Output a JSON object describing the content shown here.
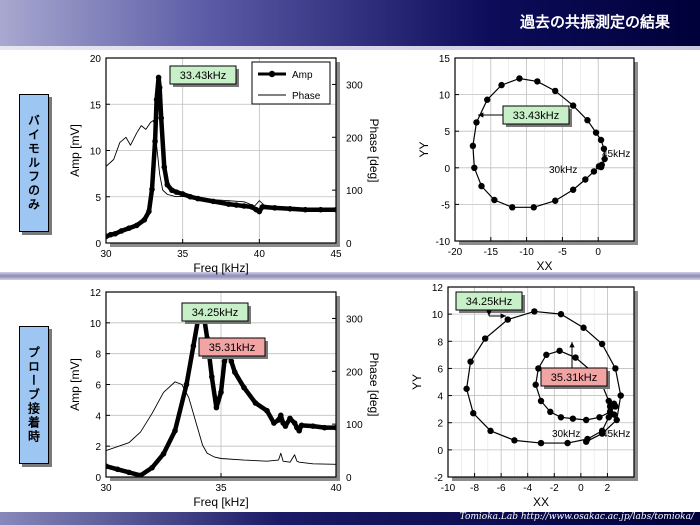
{
  "page": {
    "title": "過去の共振測定の結果",
    "footer": "Tomioka.Lab   http://www.osakac.ac.jp/labs/tomioka/",
    "section_labels": [
      "バイモルフのみ",
      "プローブ接着時"
    ]
  },
  "colors": {
    "grid": "#bfbfbf",
    "plot_bg": "#ffffff",
    "page_bg": "#ffffff",
    "frame": "#000000",
    "freq_box_green": "#c8f0c8",
    "freq_box_red": "#f2a4a4",
    "label_blue": "#9ec6f2"
  },
  "chart_data": [
    {
      "type": "line",
      "panel": "bimorph-freq",
      "xlabel": "Freq [kHz]",
      "ylabel": "Amp [mV]",
      "y2label": "Phase [deg]",
      "xlim": [
        30,
        45
      ],
      "ylim": [
        0,
        20
      ],
      "y2lim": [
        0,
        350
      ],
      "xticks": [
        30,
        35,
        40,
        45
      ],
      "yticks": [
        0,
        5,
        10,
        15,
        20
      ],
      "y2ticks": [
        0,
        100,
        200,
        300
      ],
      "grid": true,
      "legend": {
        "placement": "top-right",
        "entries": [
          "Amp",
          "Phase"
        ]
      },
      "annotations": [
        {
          "text": "33.43kHz"
        }
      ],
      "series": [
        {
          "name": "Amp",
          "axis": "left",
          "style": "thick-dots",
          "x": [
            30,
            30.3,
            30.6,
            31,
            31.5,
            32,
            32.5,
            32.8,
            33,
            33.2,
            33.3,
            33.43,
            33.5,
            33.6,
            33.8,
            34,
            34.3,
            34.6,
            35,
            35.5,
            36,
            37,
            38,
            38.5,
            39,
            39.5,
            39.8,
            40,
            40.2,
            41,
            42,
            43,
            44,
            45
          ],
          "y": [
            0.7,
            0.9,
            1.0,
            1.3,
            1.6,
            1.9,
            2.5,
            3.4,
            5.8,
            11,
            15.5,
            17.9,
            16.8,
            13.5,
            8.2,
            6.3,
            5.7,
            5.5,
            5.3,
            5.0,
            4.8,
            4.5,
            4.2,
            4.1,
            4.0,
            3.9,
            3.6,
            3.4,
            3.9,
            3.8,
            3.7,
            3.6,
            3.6,
            3.6
          ]
        },
        {
          "name": "Phase",
          "axis": "right",
          "style": "thin",
          "x": [
            30,
            30.5,
            30.9,
            31.3,
            31.6,
            32,
            32.3,
            32.6,
            32.9,
            33.1,
            33.3,
            33.5,
            33.7,
            34,
            34.5,
            35,
            36,
            37,
            38,
            39,
            39.7,
            40,
            40.3,
            41,
            42,
            43,
            45
          ],
          "y": [
            145,
            158,
            190,
            200,
            185,
            208,
            222,
            215,
            228,
            232,
            185,
            130,
            100,
            92,
            88,
            88,
            85,
            82,
            80,
            78,
            70,
            80,
            72,
            68,
            65,
            64,
            62
          ]
        }
      ]
    },
    {
      "type": "scatter",
      "panel": "bimorph-polar",
      "xlabel": "XX",
      "ylabel": "YY",
      "xlim": [
        -20,
        5
      ],
      "ylim": [
        -10,
        15
      ],
      "xticks": [
        -20,
        -15,
        -10,
        -5,
        0
      ],
      "yticks": [
        -10,
        -5,
        0,
        5,
        10,
        15
      ],
      "grid": true,
      "annotations": [
        {
          "text": "33.43kHz"
        },
        {
          "text": "30kHz"
        },
        {
          "text": "45kHz"
        }
      ],
      "series": [
        {
          "x": [
            0.4,
            0.9,
            0.8,
            0.4,
            -0.3,
            -1.5,
            -3.5,
            -6,
            -8.5,
            -11,
            -13.5,
            -15.5,
            -17,
            -17.5,
            -17.3,
            -16.3,
            -14.5,
            -12,
            -9,
            -6,
            -3.5,
            -1.8,
            -0.6,
            0.1,
            0.5
          ],
          "y": [
            0.1,
            1.2,
            2.6,
            3.8,
            4.8,
            6.5,
            8.5,
            10.5,
            11.8,
            12.2,
            11.3,
            9.3,
            6.2,
            3,
            0,
            -2.5,
            -4.4,
            -5.4,
            -5.4,
            -4.5,
            -3,
            -1.6,
            -0.5,
            0.2,
            0.4
          ]
        }
      ]
    },
    {
      "type": "line",
      "panel": "probe-freq",
      "xlabel": "Freq [kHz]",
      "ylabel": "Amp [mV]",
      "y2label": "Phase [deg]",
      "xlim": [
        30,
        40
      ],
      "ylim": [
        0,
        12
      ],
      "y2lim": [
        0,
        350
      ],
      "xticks": [
        30,
        35,
        40
      ],
      "yticks": [
        0,
        2,
        4,
        6,
        8,
        10,
        12
      ],
      "y2ticks": [
        0,
        100,
        200,
        300
      ],
      "grid": true,
      "annotations": [
        {
          "text": "34.25kHz"
        },
        {
          "text": "35.31kHz"
        }
      ],
      "series": [
        {
          "name": "Amp",
          "axis": "left",
          "style": "thick-dots",
          "x": [
            30,
            30.5,
            31,
            31.5,
            32,
            32.5,
            33,
            33.5,
            33.8,
            34,
            34.1,
            34.25,
            34.4,
            34.6,
            34.8,
            35,
            35.15,
            35.31,
            35.45,
            35.6,
            36,
            36.5,
            37,
            37.3,
            37.5,
            37.6,
            37.7,
            37.8,
            38,
            38.2,
            38.3,
            38.4,
            38.5,
            39,
            39.5,
            40
          ],
          "y": [
            0.7,
            0.5,
            0.3,
            0.1,
            0.6,
            1.5,
            3.0,
            6.0,
            8.5,
            10.2,
            10.8,
            10.5,
            9.0,
            6.5,
            4.5,
            5.5,
            7.5,
            8.2,
            7.5,
            6.8,
            5.8,
            4.8,
            4.3,
            3.5,
            3.7,
            4.0,
            3.5,
            3.3,
            3.8,
            3.5,
            3.2,
            3.0,
            3.35,
            3.3,
            3.2,
            3.2
          ]
        },
        {
          "name": "Phase",
          "axis": "right",
          "style": "thin",
          "x": [
            30,
            31,
            31.5,
            32,
            32.5,
            33,
            33.3,
            33.6,
            34,
            34.2,
            34.4,
            34.7,
            35,
            36,
            37,
            37.5,
            37.6,
            37.7,
            38,
            38.2,
            38.3,
            38.4,
            39,
            40
          ],
          "y": [
            50,
            65,
            85,
            120,
            160,
            180,
            175,
            150,
            90,
            60,
            45,
            38,
            35,
            32,
            30,
            32,
            45,
            30,
            28,
            42,
            30,
            28,
            25,
            24
          ]
        }
      ]
    },
    {
      "type": "scatter",
      "panel": "probe-polar",
      "xlabel": "XX",
      "ylabel": "YY",
      "xlim": [
        -10,
        4
      ],
      "ylim": [
        -2,
        12
      ],
      "xticks": [
        -10,
        -8,
        -6,
        -4,
        -2,
        0,
        2
      ],
      "yticks": [
        -2,
        0,
        2,
        4,
        6,
        8,
        10,
        12
      ],
      "grid": true,
      "annotations": [
        {
          "text": "34.25kHz"
        },
        {
          "text": "35.31kHz"
        },
        {
          "text": "30kHz"
        },
        {
          "text": "45kHz"
        }
      ],
      "series": [
        {
          "x": [
            0.4,
            1.6,
            2.7,
            3.0,
            2.6,
            1.6,
            0.2,
            -1.5,
            -3.5,
            -5.5,
            -7.2,
            -8.3,
            -8.6,
            -8.1,
            -6.8,
            -5.0,
            -3.0,
            -1.0,
            0.5,
            1.6,
            2.1,
            2.1,
            1.6,
            0.8,
            -0.4,
            -1.6,
            -2.6,
            -3.2,
            -3.4,
            -3.0,
            -2.3,
            -1.5,
            -0.6,
            0.4,
            1.4,
            2.2,
            2.6,
            2.5,
            2.2,
            2.2,
            2.5
          ],
          "y": [
            0.6,
            1.2,
            2.2,
            4.0,
            6.0,
            7.8,
            9.0,
            10.0,
            10.2,
            9.6,
            8.2,
            6.5,
            4.5,
            2.7,
            1.4,
            0.7,
            0.5,
            0.5,
            0.8,
            1.4,
            2.4,
            3.6,
            4.8,
            5.8,
            6.8,
            7.3,
            7.0,
            6.0,
            4.8,
            3.6,
            2.8,
            2.4,
            2.3,
            2.2,
            2.4,
            2.8,
            3.2,
            3.4,
            3.2,
            2.8,
            2.6
          ]
        }
      ]
    }
  ]
}
